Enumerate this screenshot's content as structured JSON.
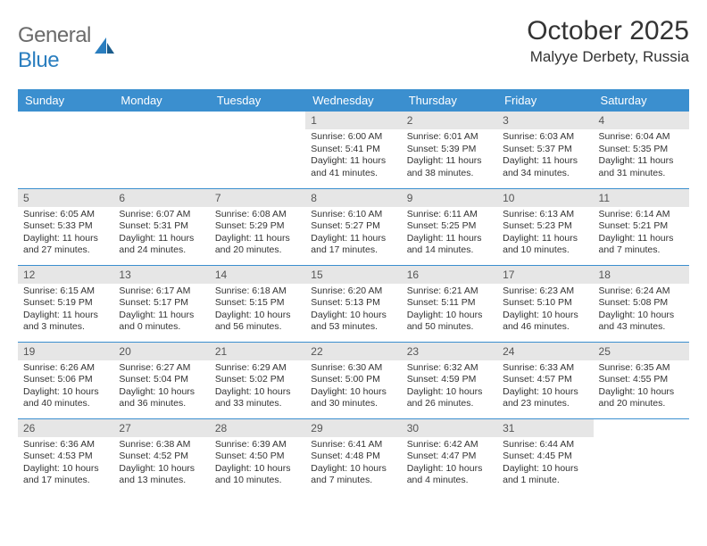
{
  "logo": {
    "text1": "General",
    "text2": "Blue"
  },
  "title": "October 2025",
  "location": "Malyye Derbety, Russia",
  "header_bg": "#3b8fcf",
  "daynum_bg": "#e6e6e6",
  "days_of_week": [
    "Sunday",
    "Monday",
    "Tuesday",
    "Wednesday",
    "Thursday",
    "Friday",
    "Saturday"
  ],
  "weeks": [
    [
      {
        "num": "",
        "sunrise": "",
        "sunset": "",
        "daylight": ""
      },
      {
        "num": "",
        "sunrise": "",
        "sunset": "",
        "daylight": ""
      },
      {
        "num": "",
        "sunrise": "",
        "sunset": "",
        "daylight": ""
      },
      {
        "num": "1",
        "sunrise": "Sunrise: 6:00 AM",
        "sunset": "Sunset: 5:41 PM",
        "daylight": "Daylight: 11 hours and 41 minutes."
      },
      {
        "num": "2",
        "sunrise": "Sunrise: 6:01 AM",
        "sunset": "Sunset: 5:39 PM",
        "daylight": "Daylight: 11 hours and 38 minutes."
      },
      {
        "num": "3",
        "sunrise": "Sunrise: 6:03 AM",
        "sunset": "Sunset: 5:37 PM",
        "daylight": "Daylight: 11 hours and 34 minutes."
      },
      {
        "num": "4",
        "sunrise": "Sunrise: 6:04 AM",
        "sunset": "Sunset: 5:35 PM",
        "daylight": "Daylight: 11 hours and 31 minutes."
      }
    ],
    [
      {
        "num": "5",
        "sunrise": "Sunrise: 6:05 AM",
        "sunset": "Sunset: 5:33 PM",
        "daylight": "Daylight: 11 hours and 27 minutes."
      },
      {
        "num": "6",
        "sunrise": "Sunrise: 6:07 AM",
        "sunset": "Sunset: 5:31 PM",
        "daylight": "Daylight: 11 hours and 24 minutes."
      },
      {
        "num": "7",
        "sunrise": "Sunrise: 6:08 AM",
        "sunset": "Sunset: 5:29 PM",
        "daylight": "Daylight: 11 hours and 20 minutes."
      },
      {
        "num": "8",
        "sunrise": "Sunrise: 6:10 AM",
        "sunset": "Sunset: 5:27 PM",
        "daylight": "Daylight: 11 hours and 17 minutes."
      },
      {
        "num": "9",
        "sunrise": "Sunrise: 6:11 AM",
        "sunset": "Sunset: 5:25 PM",
        "daylight": "Daylight: 11 hours and 14 minutes."
      },
      {
        "num": "10",
        "sunrise": "Sunrise: 6:13 AM",
        "sunset": "Sunset: 5:23 PM",
        "daylight": "Daylight: 11 hours and 10 minutes."
      },
      {
        "num": "11",
        "sunrise": "Sunrise: 6:14 AM",
        "sunset": "Sunset: 5:21 PM",
        "daylight": "Daylight: 11 hours and 7 minutes."
      }
    ],
    [
      {
        "num": "12",
        "sunrise": "Sunrise: 6:15 AM",
        "sunset": "Sunset: 5:19 PM",
        "daylight": "Daylight: 11 hours and 3 minutes."
      },
      {
        "num": "13",
        "sunrise": "Sunrise: 6:17 AM",
        "sunset": "Sunset: 5:17 PM",
        "daylight": "Daylight: 11 hours and 0 minutes."
      },
      {
        "num": "14",
        "sunrise": "Sunrise: 6:18 AM",
        "sunset": "Sunset: 5:15 PM",
        "daylight": "Daylight: 10 hours and 56 minutes."
      },
      {
        "num": "15",
        "sunrise": "Sunrise: 6:20 AM",
        "sunset": "Sunset: 5:13 PM",
        "daylight": "Daylight: 10 hours and 53 minutes."
      },
      {
        "num": "16",
        "sunrise": "Sunrise: 6:21 AM",
        "sunset": "Sunset: 5:11 PM",
        "daylight": "Daylight: 10 hours and 50 minutes."
      },
      {
        "num": "17",
        "sunrise": "Sunrise: 6:23 AM",
        "sunset": "Sunset: 5:10 PM",
        "daylight": "Daylight: 10 hours and 46 minutes."
      },
      {
        "num": "18",
        "sunrise": "Sunrise: 6:24 AM",
        "sunset": "Sunset: 5:08 PM",
        "daylight": "Daylight: 10 hours and 43 minutes."
      }
    ],
    [
      {
        "num": "19",
        "sunrise": "Sunrise: 6:26 AM",
        "sunset": "Sunset: 5:06 PM",
        "daylight": "Daylight: 10 hours and 40 minutes."
      },
      {
        "num": "20",
        "sunrise": "Sunrise: 6:27 AM",
        "sunset": "Sunset: 5:04 PM",
        "daylight": "Daylight: 10 hours and 36 minutes."
      },
      {
        "num": "21",
        "sunrise": "Sunrise: 6:29 AM",
        "sunset": "Sunset: 5:02 PM",
        "daylight": "Daylight: 10 hours and 33 minutes."
      },
      {
        "num": "22",
        "sunrise": "Sunrise: 6:30 AM",
        "sunset": "Sunset: 5:00 PM",
        "daylight": "Daylight: 10 hours and 30 minutes."
      },
      {
        "num": "23",
        "sunrise": "Sunrise: 6:32 AM",
        "sunset": "Sunset: 4:59 PM",
        "daylight": "Daylight: 10 hours and 26 minutes."
      },
      {
        "num": "24",
        "sunrise": "Sunrise: 6:33 AM",
        "sunset": "Sunset: 4:57 PM",
        "daylight": "Daylight: 10 hours and 23 minutes."
      },
      {
        "num": "25",
        "sunrise": "Sunrise: 6:35 AM",
        "sunset": "Sunset: 4:55 PM",
        "daylight": "Daylight: 10 hours and 20 minutes."
      }
    ],
    [
      {
        "num": "26",
        "sunrise": "Sunrise: 6:36 AM",
        "sunset": "Sunset: 4:53 PM",
        "daylight": "Daylight: 10 hours and 17 minutes."
      },
      {
        "num": "27",
        "sunrise": "Sunrise: 6:38 AM",
        "sunset": "Sunset: 4:52 PM",
        "daylight": "Daylight: 10 hours and 13 minutes."
      },
      {
        "num": "28",
        "sunrise": "Sunrise: 6:39 AM",
        "sunset": "Sunset: 4:50 PM",
        "daylight": "Daylight: 10 hours and 10 minutes."
      },
      {
        "num": "29",
        "sunrise": "Sunrise: 6:41 AM",
        "sunset": "Sunset: 4:48 PM",
        "daylight": "Daylight: 10 hours and 7 minutes."
      },
      {
        "num": "30",
        "sunrise": "Sunrise: 6:42 AM",
        "sunset": "Sunset: 4:47 PM",
        "daylight": "Daylight: 10 hours and 4 minutes."
      },
      {
        "num": "31",
        "sunrise": "Sunrise: 6:44 AM",
        "sunset": "Sunset: 4:45 PM",
        "daylight": "Daylight: 10 hours and 1 minute."
      },
      {
        "num": "",
        "sunrise": "",
        "sunset": "",
        "daylight": ""
      }
    ]
  ]
}
